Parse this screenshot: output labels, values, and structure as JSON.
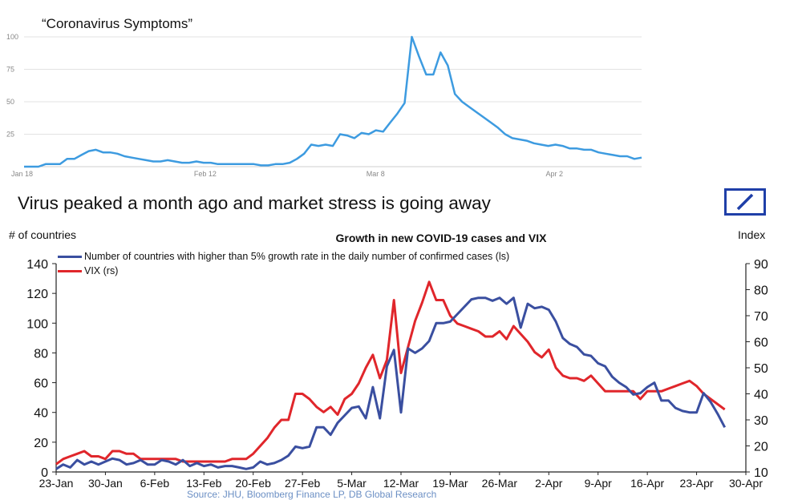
{
  "colors": {
    "google_line": "#3d9be0",
    "countries_line": "#3a4fa0",
    "vix_line": "#e0262b",
    "logo": "#1f3fa8",
    "source_text": "#6b8fc4"
  },
  "headline": "Virus peaked a month ago and market stress is going away",
  "logo_icon": "deutsche-bank-logo-icon",
  "chart_data": [
    {
      "type": "line",
      "title": "“Coronavirus Symptoms”",
      "xlabel": "",
      "ylabel": "",
      "x_tick_labels": [
        "Jan 18",
        "Feb 12",
        "Mar 8",
        "Apr 2"
      ],
      "x_tick_days": [
        0,
        25,
        49,
        74
      ],
      "y_tick_labels": [
        "100",
        "75",
        "50",
        "25"
      ],
      "y_ticks": [
        100,
        75,
        50,
        25
      ],
      "ylim": [
        0,
        100
      ],
      "xlim": [
        0,
        86
      ],
      "grid": true,
      "series": [
        {
          "name": "Coronavirus Symptoms",
          "x": [
            0,
            2,
            3,
            4,
            5,
            6,
            7,
            8,
            9,
            10,
            11,
            12,
            13,
            14,
            15,
            16,
            17,
            18,
            19,
            20,
            21,
            22,
            23,
            24,
            25,
            26,
            27,
            28,
            29,
            30,
            31,
            32,
            33,
            34,
            35,
            36,
            37,
            38,
            39,
            40,
            41,
            42,
            43,
            44,
            45,
            46,
            47,
            48,
            49,
            50,
            51,
            52,
            53,
            54,
            55,
            56,
            57,
            58,
            59,
            60,
            61,
            62,
            63,
            64,
            65,
            66,
            67,
            68,
            69,
            70,
            71,
            72,
            73,
            74,
            75,
            76,
            77,
            78,
            79,
            80,
            81,
            82,
            83,
            84,
            85,
            86
          ],
          "values": [
            0,
            0,
            2,
            2,
            2,
            6,
            6,
            9,
            12,
            13,
            11,
            11,
            10,
            8,
            7,
            6,
            5,
            4,
            4,
            5,
            4,
            3,
            3,
            4,
            3,
            3,
            2,
            2,
            2,
            2,
            2,
            2,
            1,
            1,
            2,
            2,
            3,
            6,
            10,
            17,
            16,
            17,
            16,
            25,
            24,
            22,
            26,
            25,
            28,
            27,
            34,
            41,
            49,
            100,
            85,
            71,
            71,
            88,
            78,
            56,
            50,
            46,
            42,
            38,
            34,
            30,
            25,
            22,
            21,
            20,
            18,
            17,
            16,
            17,
            16,
            14,
            14,
            13,
            13,
            11,
            10,
            9,
            8,
            8,
            6,
            7
          ]
        }
      ]
    },
    {
      "type": "line",
      "title": "Growth in new COVID-19 cases and VIX",
      "ylabel_left": "# of countries",
      "ylabel_right": "Index",
      "source": "Source: JHU, Bloomberg Finance LP, DB Global Research",
      "x_tick_labels": [
        "23-Jan",
        "30-Jan",
        "6-Feb",
        "13-Feb",
        "20-Feb",
        "27-Feb",
        "5-Mar",
        "12-Mar",
        "19-Mar",
        "26-Mar",
        "2-Apr",
        "9-Apr",
        "16-Apr",
        "23-Apr",
        "30-Apr"
      ],
      "x_tick_days": [
        0,
        7,
        14,
        21,
        28,
        35,
        42,
        49,
        56,
        63,
        70,
        77,
        84,
        91,
        98
      ],
      "xlim": [
        0,
        98
      ],
      "y_left_ticks": [
        0,
        20,
        40,
        60,
        80,
        100,
        120,
        140
      ],
      "y_left_tick_labels": [
        "0",
        "20",
        "40",
        "60",
        "80",
        "100",
        "120",
        "140"
      ],
      "ylim_left": [
        0,
        140
      ],
      "y_right_ticks": [
        10,
        20,
        30,
        40,
        50,
        60,
        70,
        80,
        90
      ],
      "y_right_tick_labels": [
        "10",
        "20",
        "30",
        "40",
        "50",
        "60",
        "70",
        "80",
        "90"
      ],
      "ylim_right": [
        10,
        90
      ],
      "legend": "top-left",
      "series": [
        {
          "name": "Number of countries with higher than 5% growth rate in the daily number of confirmed cases (ls)",
          "axis": "left",
          "x": [
            0,
            1,
            2,
            3,
            4,
            5,
            6,
            7,
            8,
            9,
            10,
            11,
            12,
            13,
            14,
            15,
            16,
            17,
            18,
            19,
            20,
            21,
            22,
            23,
            24,
            25,
            26,
            27,
            28,
            29,
            30,
            31,
            32,
            33,
            34,
            35,
            36,
            37,
            38,
            39,
            40,
            41,
            42,
            43,
            44,
            45,
            46,
            47,
            48,
            49,
            50,
            51,
            52,
            53,
            54,
            55,
            56,
            57,
            58,
            59,
            60,
            61,
            62,
            63,
            64,
            65,
            66,
            67,
            68,
            69,
            70,
            71,
            72,
            73,
            74,
            75,
            76,
            77,
            78,
            79,
            80,
            81,
            82,
            83,
            84,
            85,
            86,
            87,
            88,
            89,
            90,
            91,
            92,
            93,
            94,
            95
          ],
          "values": [
            2,
            5,
            3,
            8,
            5,
            7,
            5,
            7,
            9,
            8,
            5,
            6,
            8,
            5,
            5,
            8,
            7,
            5,
            8,
            4,
            6,
            4,
            5,
            3,
            4,
            4,
            3,
            2,
            3,
            7,
            5,
            6,
            8,
            11,
            17,
            16,
            17,
            30,
            30,
            25,
            33,
            38,
            43,
            44,
            36,
            57,
            36,
            71,
            82,
            40,
            83,
            80,
            83,
            88,
            100,
            100,
            101,
            106,
            111,
            116,
            117,
            117,
            115,
            117,
            113,
            117,
            97,
            113,
            110,
            111,
            109,
            101,
            90,
            86,
            84,
            79,
            78,
            73,
            71,
            64,
            60,
            57,
            52,
            53,
            57,
            60,
            48,
            48,
            43,
            41,
            40,
            40,
            53,
            47,
            39,
            30
          ]
        },
        {
          "name": "VIX (rs)",
          "axis": "right",
          "x": [
            0,
            1,
            2,
            3,
            4,
            5,
            6,
            7,
            8,
            9,
            10,
            11,
            12,
            13,
            14,
            15,
            16,
            17,
            18,
            19,
            20,
            21,
            22,
            23,
            24,
            25,
            26,
            27,
            28,
            29,
            30,
            31,
            32,
            33,
            34,
            35,
            36,
            37,
            38,
            39,
            40,
            41,
            42,
            43,
            44,
            45,
            46,
            47,
            48,
            49,
            50,
            51,
            52,
            53,
            54,
            55,
            56,
            57,
            58,
            59,
            60,
            61,
            62,
            63,
            64,
            65,
            66,
            67,
            68,
            69,
            70,
            71,
            72,
            73,
            74,
            75,
            76,
            77,
            78,
            79,
            80,
            81,
            82,
            83,
            84,
            85,
            86,
            87,
            88,
            89,
            90,
            91,
            92,
            93,
            94,
            95
          ],
          "values": [
            13,
            15,
            16,
            17,
            18,
            16,
            16,
            15,
            18,
            18,
            17,
            17,
            15,
            15,
            15,
            15,
            15,
            15,
            14,
            14,
            14,
            14,
            14,
            14,
            14,
            15,
            15,
            15,
            17,
            20,
            23,
            27,
            30,
            30,
            40,
            40,
            38,
            35,
            33,
            35,
            32,
            38,
            40,
            44,
            50,
            55,
            46,
            53,
            76,
            48,
            58,
            68,
            75,
            83,
            76,
            76,
            70,
            67,
            66,
            65,
            64,
            62,
            62,
            64,
            61,
            66,
            63,
            60,
            56,
            54,
            57,
            50,
            47,
            46,
            46,
            45,
            47,
            44,
            41,
            41,
            41,
            41,
            41,
            38,
            41,
            41,
            41,
            42,
            43,
            44,
            45,
            43,
            40,
            38,
            36,
            34
          ]
        }
      ]
    }
  ]
}
